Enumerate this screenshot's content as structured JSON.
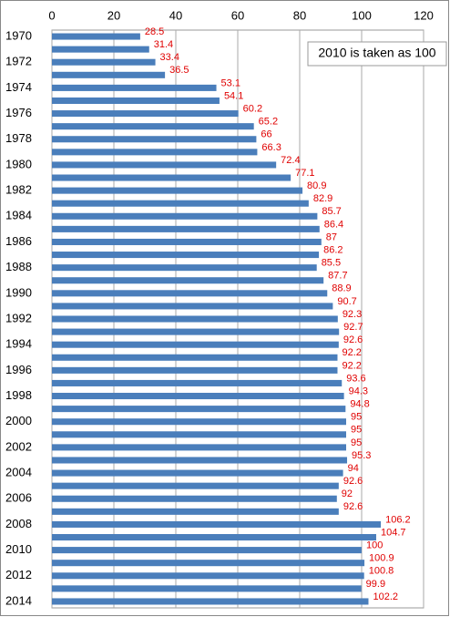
{
  "chart_data": {
    "type": "bar",
    "orientation": "horizontal",
    "annotation": "2010 is taken as 100",
    "categories": [
      "1970",
      null,
      "1972",
      null,
      "1974",
      null,
      "1976",
      null,
      "1978",
      null,
      "1980",
      null,
      "1982",
      null,
      "1984",
      null,
      "1986",
      null,
      "1988",
      null,
      "1990",
      null,
      "1992",
      null,
      "1994",
      null,
      "1996",
      null,
      "1998",
      null,
      "2000",
      null,
      "2002",
      null,
      "2004",
      null,
      "2006",
      null,
      "2008",
      null,
      "2010",
      null,
      "2012",
      null,
      "2014"
    ],
    "values": [
      28.5,
      31.4,
      33.4,
      36.5,
      53.1,
      54.1,
      60.2,
      65.2,
      66,
      66.3,
      72.4,
      77.1,
      80.9,
      82.9,
      85.7,
      86.4,
      87,
      86.2,
      85.5,
      87.7,
      88.9,
      90.7,
      92.3,
      92.7,
      92.6,
      92.2,
      92.2,
      93.6,
      94.3,
      94.8,
      95,
      95,
      95,
      95.3,
      94,
      92.6,
      92,
      92.6,
      106.2,
      104.7,
      100,
      100.9,
      100.8,
      99.9,
      102.2
    ],
    "color": "#4a7ebb",
    "xlim": [
      0,
      120
    ],
    "xticks": [
      0,
      20,
      40,
      60,
      80,
      100,
      120
    ],
    "grid": true
  }
}
